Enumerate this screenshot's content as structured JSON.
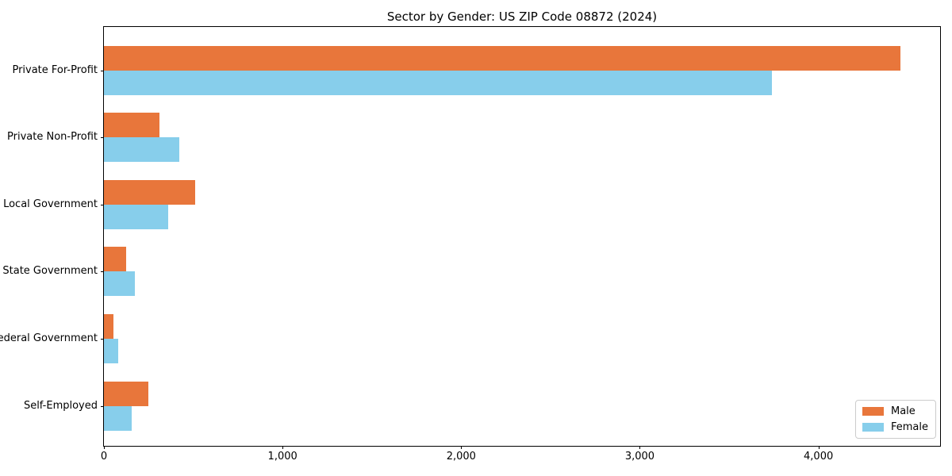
{
  "title": "Sector by Gender: US ZIP Code 08872 (2024)",
  "colors": {
    "male": "#e8763b",
    "female": "#87ceeb",
    "axis": "#000000",
    "background": "#ffffff",
    "legend_border": "#cccccc"
  },
  "legend": {
    "position": "lower right",
    "items": [
      {
        "label": "Male",
        "color": "#e8763b"
      },
      {
        "label": "Female",
        "color": "#87ceeb"
      }
    ]
  },
  "chart_data": {
    "type": "bar",
    "orientation": "horizontal",
    "title": "Sector by Gender: US ZIP Code 08872 (2024)",
    "categories": [
      "Private For-Profit",
      "Private Non-Profit",
      "Local Government",
      "State Government",
      "Federal Government",
      "Self-Employed"
    ],
    "series": [
      {
        "name": "Male",
        "color": "#e8763b",
        "values": [
          4460,
          310,
          510,
          125,
          55,
          250
        ]
      },
      {
        "name": "Female",
        "color": "#87ceeb",
        "values": [
          3740,
          420,
          360,
          175,
          80,
          155
        ]
      }
    ],
    "xlabel": "",
    "ylabel": "",
    "xlim": [
      0,
      4690
    ],
    "xticks": [
      0,
      1000,
      2000,
      3000,
      4000
    ],
    "xtick_labels": [
      "0",
      "1,000",
      "2,000",
      "3,000",
      "4,000"
    ],
    "grid": false,
    "legend_position": "lower right"
  }
}
